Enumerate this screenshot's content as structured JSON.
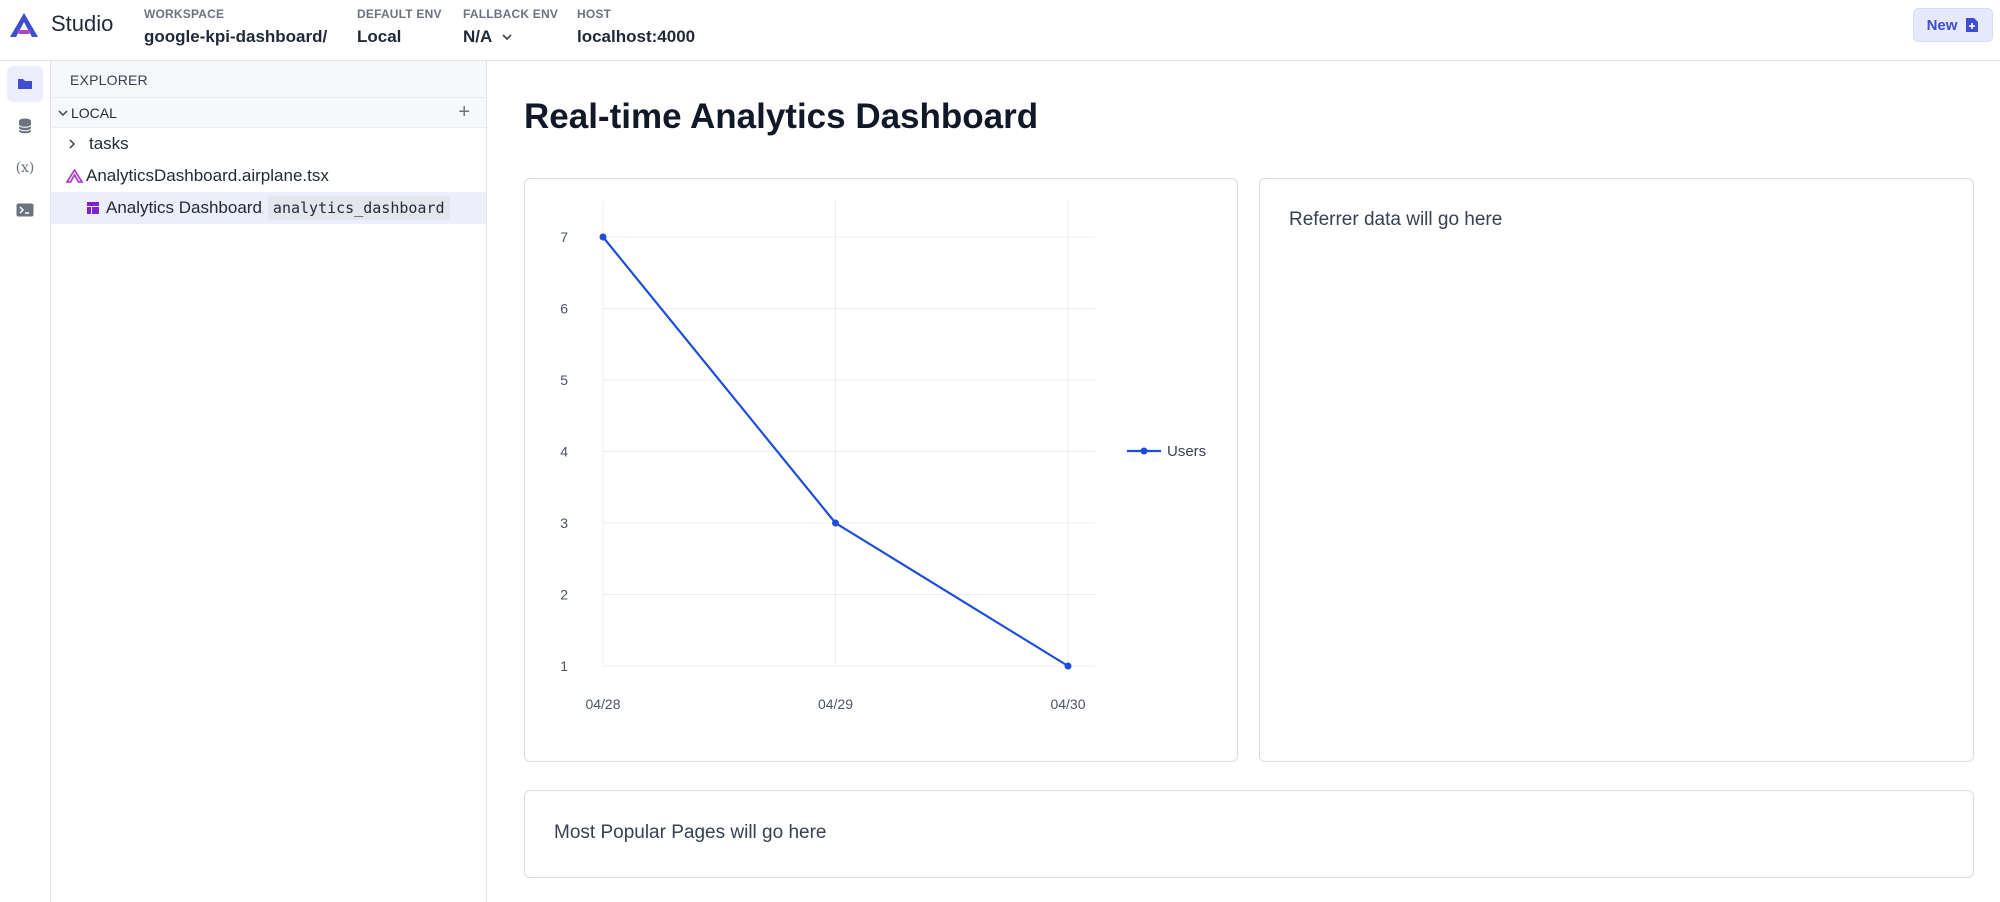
{
  "header": {
    "brand": "Studio",
    "workspace": {
      "label": "WORKSPACE",
      "value": "google-kpi-dashboard/"
    },
    "default_env": {
      "label": "DEFAULT ENV",
      "value": "Local"
    },
    "fallback_env": {
      "label": "FALLBACK ENV",
      "value": "N/A"
    },
    "host": {
      "label": "HOST",
      "value": "localhost:4000"
    },
    "new_label": "New"
  },
  "activity_bar": {
    "items": [
      {
        "icon": "folder-icon",
        "active": true
      },
      {
        "icon": "database-icon",
        "active": false
      },
      {
        "icon": "variable-icon",
        "label": "(x)",
        "active": false
      },
      {
        "icon": "terminal-icon",
        "active": false
      }
    ]
  },
  "explorer": {
    "title": "EXPLORER",
    "section": "LOCAL",
    "items": [
      {
        "label": "tasks",
        "type": "folder"
      },
      {
        "label": "AnalyticsDashboard.airplane.tsx",
        "type": "file"
      },
      {
        "label": "Analytics Dashboard",
        "slug": "analytics_dashboard",
        "type": "view",
        "selected": true
      }
    ]
  },
  "main": {
    "title": "Real-time Analytics Dashboard",
    "referrer_placeholder": "Referrer data will go here",
    "popular_placeholder": "Most Popular Pages will go here"
  },
  "colors": {
    "accent": "#3d4ed1",
    "series": "#1d4ed8",
    "logo_a": "#3d4ed1",
    "logo_b": "#b046c6"
  },
  "chart_data": {
    "type": "line",
    "categories": [
      "04/28",
      "04/29",
      "04/30"
    ],
    "series": [
      {
        "name": "Users",
        "values": [
          7,
          3,
          1
        ]
      }
    ],
    "y_ticks": [
      1,
      2,
      3,
      4,
      5,
      6,
      7
    ],
    "ylim": [
      1,
      7
    ],
    "grid": true,
    "legend": "right"
  }
}
